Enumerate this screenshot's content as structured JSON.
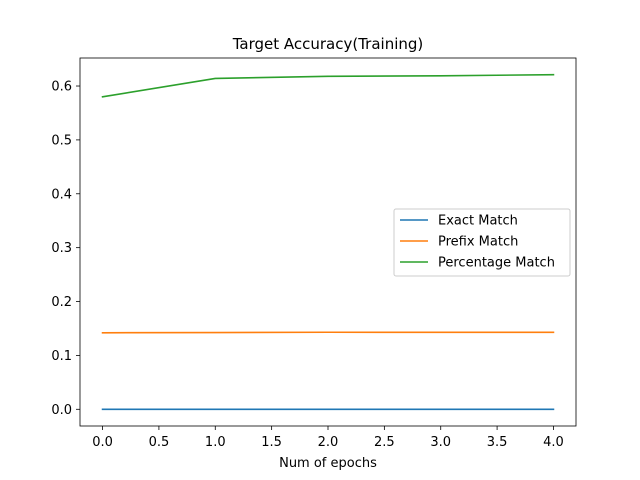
{
  "chart_data": {
    "type": "line",
    "title": "Target Accuracy(Training)",
    "xlabel": "Num of epochs",
    "ylabel": "",
    "x": [
      0,
      1,
      2,
      3,
      4
    ],
    "xlim": [
      -0.2,
      4.2
    ],
    "ylim": [
      -0.031,
      0.652
    ],
    "xticks": [
      "0.0",
      "0.5",
      "1.0",
      "1.5",
      "2.0",
      "2.5",
      "3.0",
      "3.5",
      "4.0"
    ],
    "yticks": [
      "0.0",
      "0.1",
      "0.2",
      "0.3",
      "0.4",
      "0.5",
      "0.6"
    ],
    "grid": false,
    "legend": "center-right",
    "series": [
      {
        "name": "Exact Match",
        "color": "#1f77b4",
        "values": [
          0.0,
          0.0,
          0.0,
          0.0,
          0.0
        ]
      },
      {
        "name": "Prefix Match",
        "color": "#ff7f0e",
        "values": [
          0.142,
          0.1425,
          0.143,
          0.1428,
          0.1428
        ]
      },
      {
        "name": "Percentage Match",
        "color": "#2ca02c",
        "values": [
          0.58,
          0.614,
          0.618,
          0.619,
          0.621
        ]
      }
    ]
  }
}
